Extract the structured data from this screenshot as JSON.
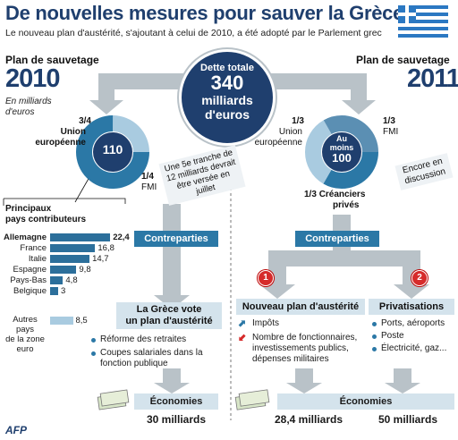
{
  "header": {
    "title": "De nouvelles mesures pour sauver la Grèce",
    "subtitle": "Le nouveau plan d'austérité, s'ajoutant à celui de 2010, a été adopté par le Parlement grec"
  },
  "center": {
    "line1": "Dette totale",
    "line2": "340",
    "line3": "milliards",
    "line4": "d'euros"
  },
  "plan2010": {
    "label": "Plan de sauvetage",
    "year": "2010",
    "unit_line1": "En milliards",
    "unit_line2": "d'euros",
    "total": "110",
    "ue_fraction": "3/4",
    "ue_line1": "Union",
    "ue_line2": "européenne",
    "fmi_fraction": "1/4",
    "fmi_label": "FMI",
    "note": "Une 5e tranche de 12 milliards devrait être versée en juillet"
  },
  "plan2011": {
    "label": "Plan de sauvetage",
    "year": "2011",
    "total_line1": "Au",
    "total_line2": "moins",
    "total_line3": "100",
    "ue_fraction": "1/3",
    "ue_line1": "Union",
    "ue_line2": "européenne",
    "fmi_fraction": "1/3",
    "fmi_label": "FMI",
    "private_fraction": "1/3",
    "private_line1": "Créanciers",
    "private_line2": "privés",
    "note": "Encore en discussion"
  },
  "contributors": {
    "title_line1": "Principaux",
    "title_line2": "pays contributeurs",
    "countries": [
      {
        "name": "Allemagne",
        "value": 22.4,
        "label": "22,4"
      },
      {
        "name": "France",
        "value": 16.8,
        "label": "16,8"
      },
      {
        "name": "Italie",
        "value": 14.7,
        "label": "14,7"
      },
      {
        "name": "Espagne",
        "value": 9.8,
        "label": "9,8"
      },
      {
        "name": "Pays-Bas",
        "value": 4.8,
        "label": "4,8"
      },
      {
        "name": "Belgique",
        "value": 3,
        "label": "3"
      }
    ],
    "others_line1": "Autres",
    "others_line2": "pays",
    "others_line3": "de la zone",
    "others_line4": "euro",
    "others_value": 8.5,
    "others_label": "8,5"
  },
  "left_flow": {
    "contreparties": "Contreparties",
    "box_title_line1": "La Grèce vote",
    "box_title_line2": "un plan d'austérité",
    "bullets": [
      "Réforme des retraites",
      "Coupes salariales dans la fonction publique"
    ],
    "economies": "Économies",
    "amount": "30 milliards"
  },
  "right_flow": {
    "contreparties": "Contreparties",
    "step1_number": "1",
    "step2_number": "2",
    "box1_title": "Nouveau plan d'austérité",
    "box1_items": [
      "Impôts",
      "Nombre de fonctionnaires, investissements publics, dépenses militaires"
    ],
    "box2_title": "Privatisations",
    "box2_items": [
      "Ports, aéroports",
      "Poste",
      "Électricité, gaz..."
    ],
    "economies": "Économies",
    "amount1": "28,4 milliards",
    "amount2": "50 milliards"
  },
  "footer": {
    "credit": "AFP"
  },
  "colors": {
    "dark_blue": "#1f3f6e",
    "mid_blue": "#2b78a6",
    "light_blue": "#a9cbe0",
    "pale_blue": "#d4e3ec",
    "grey": "#b9c2c8",
    "red": "#d62b2b"
  }
}
